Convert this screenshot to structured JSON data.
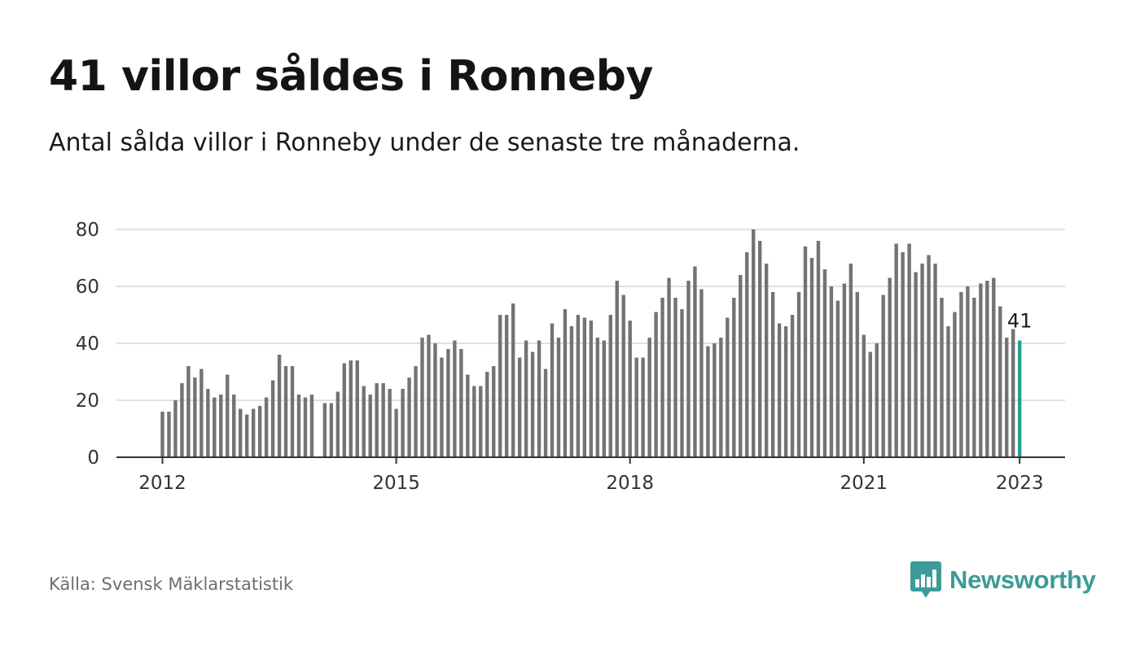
{
  "title": "41 villor såldes i Ronneby",
  "subtitle": "Antal sålda villor i Ronneby under de senaste tre månaderna.",
  "source": "Källa: Svensk Mäklarstatistik",
  "brand": {
    "name": "Newsworthy",
    "icon": "newsworthy-logo-icon"
  },
  "colors": {
    "bar": "#737373",
    "highlight": "#2a9d94",
    "grid": "#e0e0e0",
    "axis": "#333333",
    "brand": "#3b9c97"
  },
  "chart_data": {
    "type": "bar",
    "xlabel": "",
    "ylabel": "",
    "ylim": [
      0,
      80
    ],
    "y_ticks": [
      "0",
      "20",
      "40",
      "60",
      "80"
    ],
    "x_ticks": [
      "2012",
      "2015",
      "2018",
      "2021",
      "2023"
    ],
    "grid": true,
    "start_month": "2012-01",
    "values": [
      16,
      16,
      20,
      26,
      32,
      28,
      31,
      24,
      21,
      22,
      29,
      22,
      17,
      15,
      17,
      18,
      21,
      27,
      36,
      32,
      32,
      22,
      21,
      22,
      null,
      19,
      19,
      23,
      33,
      34,
      34,
      25,
      22,
      26,
      26,
      24,
      17,
      24,
      28,
      32,
      42,
      43,
      40,
      35,
      38,
      41,
      38,
      29,
      25,
      25,
      30,
      32,
      50,
      50,
      54,
      35,
      41,
      37,
      41,
      31,
      47,
      42,
      52,
      46,
      50,
      49,
      48,
      42,
      41,
      50,
      62,
      57,
      48,
      35,
      35,
      42,
      51,
      56,
      63,
      56,
      52,
      62,
      67,
      59,
      39,
      40,
      42,
      49,
      56,
      64,
      72,
      80,
      76,
      68,
      58,
      47,
      46,
      50,
      58,
      74,
      70,
      76,
      66,
      60,
      55,
      61,
      68,
      58,
      43,
      37,
      40,
      57,
      63,
      75,
      72,
      75,
      65,
      68,
      71,
      68,
      56,
      46,
      51,
      58,
      60,
      56,
      61,
      62,
      63,
      53,
      42,
      45,
      41
    ],
    "highlight_label": "41"
  }
}
